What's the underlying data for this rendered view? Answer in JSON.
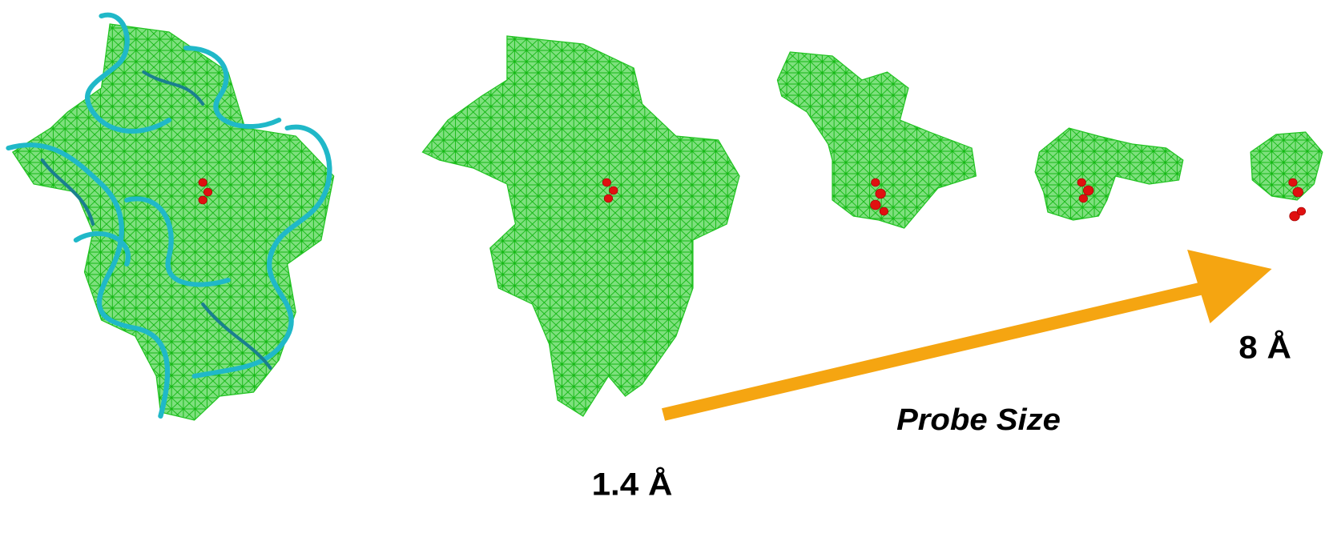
{
  "labels": {
    "start": "1.4 Å",
    "end": "8 Å",
    "axis": "Probe Size"
  }
}
